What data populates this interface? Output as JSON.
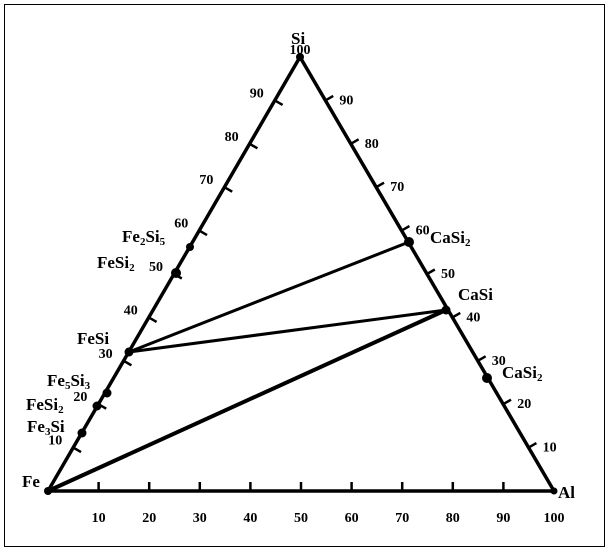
{
  "vertices": {
    "top": "Si",
    "left": "Fe",
    "right": "Al"
  },
  "tick_values": [
    10,
    20,
    30,
    40,
    50,
    60,
    70,
    80,
    90,
    100
  ],
  "left_edge_tick_labels": [
    "10",
    "20",
    "30",
    "40",
    "50",
    "60",
    "70",
    "80",
    "90",
    "100"
  ],
  "right_edge_tick_labels": [
    "10",
    "20",
    "30",
    "40",
    "50",
    "60",
    "70",
    "80",
    "90"
  ],
  "bottom_edge_tick_labels": [
    "10",
    "20",
    "30",
    "40",
    "50",
    "60",
    "70",
    "80",
    "90",
    "100"
  ],
  "phases": [
    {
      "id": "fe2si5",
      "base": "Fe",
      "sub1": "2",
      "mid": "Si",
      "sub2": "5"
    },
    {
      "id": "fesi2-upper",
      "base": "FeSi",
      "sub1": "2",
      "mid": "",
      "sub2": ""
    },
    {
      "id": "fesi",
      "base": "FeSi",
      "sub1": "",
      "mid": "",
      "sub2": ""
    },
    {
      "id": "fe5si3",
      "base": "Fe",
      "sub1": "5",
      "mid": "Si",
      "sub2": "3"
    },
    {
      "id": "fesi2-lower",
      "base": "FeSi",
      "sub1": "2",
      "mid": "",
      "sub2": ""
    },
    {
      "id": "fe3si",
      "base": "Fe",
      "sub1": "3",
      "mid": "Si",
      "sub2": ""
    },
    {
      "id": "casi2-upper",
      "base": "CaSi",
      "sub1": "2",
      "mid": "",
      "sub2": ""
    },
    {
      "id": "casi",
      "base": "CaSi",
      "sub1": "",
      "mid": "",
      "sub2": ""
    },
    {
      "id": "casi2-lower",
      "base": "CaSi",
      "sub1": "2",
      "mid": "",
      "sub2": ""
    }
  ],
  "tie_lines": [
    {
      "from": "FeSi",
      "to": "CaSi2"
    },
    {
      "from": "FeSi",
      "to": "CaSi"
    },
    {
      "from": "Fe",
      "to": "CaSi"
    }
  ],
  "colors": {
    "line": "#000000",
    "background": "#ffffff"
  }
}
